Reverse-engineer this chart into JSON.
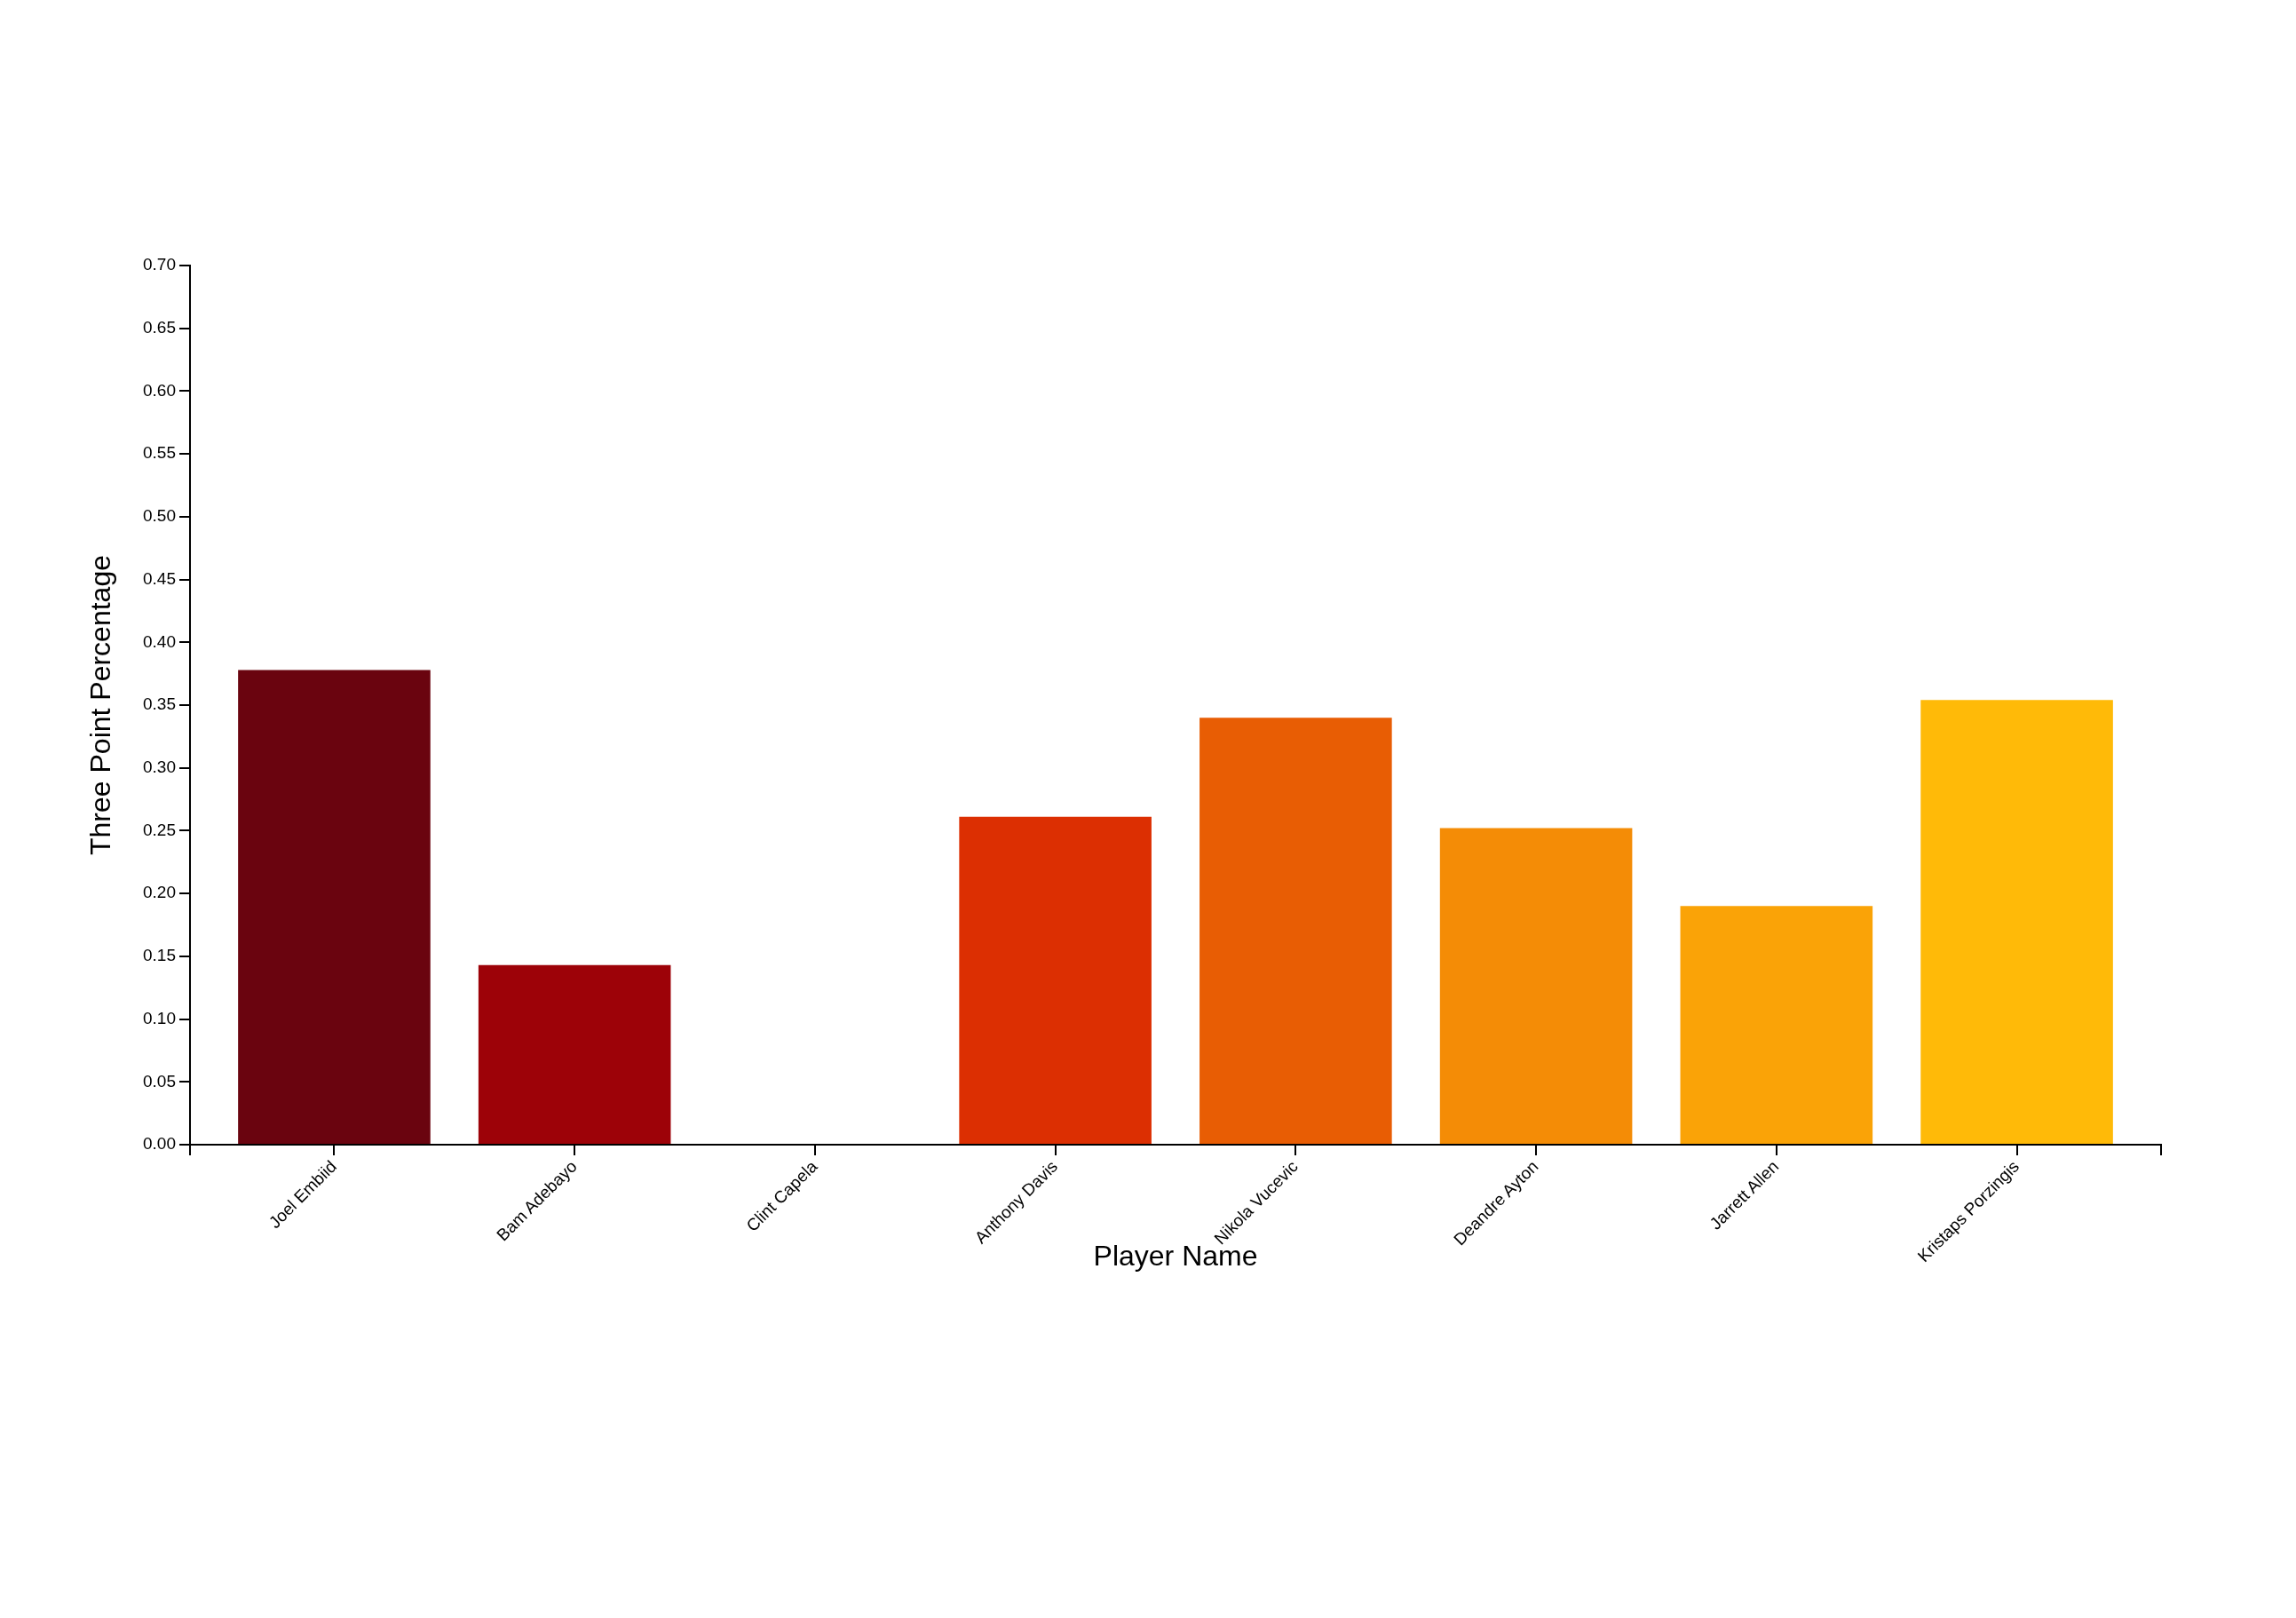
{
  "chart_data": {
    "type": "bar",
    "xlabel": "Player Name",
    "ylabel": "Three Point Percentage",
    "categories": [
      "Joel Embiid",
      "Bam Adebayo",
      "Clint Capela",
      "Anthony Davis",
      "Nikola Vucevic",
      "Deandre Ayton",
      "Jarrett Allen",
      "Kristaps Porzingis"
    ],
    "values": [
      0.378,
      0.143,
      0,
      0.261,
      0.34,
      0.252,
      0.19,
      0.354
    ],
    "colors": [
      "#6a040f",
      "#9d0208",
      "#d00000",
      "#dc2f02",
      "#e85d04",
      "#f48c06",
      "#faa307",
      "#ffba08"
    ],
    "ylim": [
      0,
      0.7
    ],
    "yticks": [
      {
        "value": 0,
        "label": "0.00"
      },
      {
        "value": 0.05,
        "label": "0.05"
      },
      {
        "value": 0.1,
        "label": "0.10"
      },
      {
        "value": 0.15,
        "label": "0.15"
      },
      {
        "value": 0.2,
        "label": "0.20"
      },
      {
        "value": 0.25,
        "label": "0.25"
      },
      {
        "value": 0.3,
        "label": "0.30"
      },
      {
        "value": 0.35,
        "label": "0.35"
      },
      {
        "value": 0.4,
        "label": "0.40"
      },
      {
        "value": 0.45,
        "label": "0.45"
      },
      {
        "value": 0.5,
        "label": "0.50"
      },
      {
        "value": 0.55,
        "label": "0.55"
      },
      {
        "value": 0.6,
        "label": "0.60"
      },
      {
        "value": 0.65,
        "label": "0.65"
      },
      {
        "value": 0.7,
        "label": "0.70"
      }
    ]
  }
}
